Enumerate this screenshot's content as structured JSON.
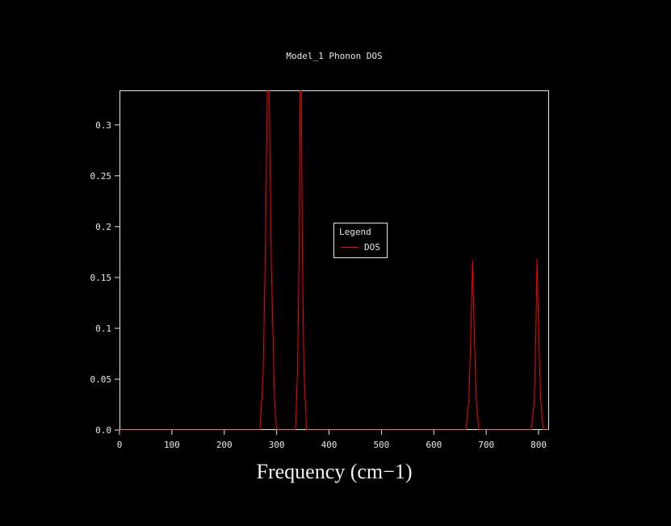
{
  "chart_data": {
    "type": "line",
    "title": "Model_1 Phonon DOS",
    "xlabel": "Frequency (cm−1)",
    "ylabel": "",
    "xlim": [
      0,
      820
    ],
    "ylim": [
      0,
      0.334
    ],
    "grid": false,
    "background_color": "#000000",
    "frame_color": "#e8e8e8",
    "x_ticks": [
      {
        "v": 0,
        "label": "0"
      },
      {
        "v": 100,
        "label": "100"
      },
      {
        "v": 200,
        "label": "200"
      },
      {
        "v": 300,
        "label": "300"
      },
      {
        "v": 400,
        "label": "400"
      },
      {
        "v": 500,
        "label": "500"
      },
      {
        "v": 600,
        "label": "600"
      },
      {
        "v": 700,
        "label": "700"
      },
      {
        "v": 800,
        "label": "800"
      }
    ],
    "y_ticks": [
      {
        "v": 0.0,
        "label": "0.0"
      },
      {
        "v": 0.05,
        "label": "0.05"
      },
      {
        "v": 0.1,
        "label": "0.1"
      },
      {
        "v": 0.15,
        "label": "0.15"
      },
      {
        "v": 0.2,
        "label": "0.2"
      },
      {
        "v": 0.25,
        "label": "0.25"
      },
      {
        "v": 0.3,
        "label": "0.3"
      }
    ],
    "legend": {
      "title": "Legend",
      "position": "inside-center",
      "entries": [
        {
          "label": "DOS",
          "color": "#ff0000"
        }
      ]
    },
    "series": [
      {
        "name": "DOS",
        "color": "#ff0000",
        "points": [
          [
            0,
            0
          ],
          [
            268,
            0
          ],
          [
            274,
            0.05
          ],
          [
            278,
            0.16
          ],
          [
            281,
            0.28
          ],
          [
            284,
            0.42
          ],
          [
            287,
            0.28
          ],
          [
            290,
            0.16
          ],
          [
            296,
            0.03
          ],
          [
            300,
            0
          ],
          [
            336,
            0
          ],
          [
            340,
            0.06
          ],
          [
            343,
            0.18
          ],
          [
            346,
            0.42
          ],
          [
            349,
            0.18
          ],
          [
            352,
            0.06
          ],
          [
            357,
            0
          ],
          [
            661,
            0
          ],
          [
            667,
            0.03
          ],
          [
            671,
            0.1
          ],
          [
            674,
            0.167
          ],
          [
            677,
            0.1
          ],
          [
            681,
            0.03
          ],
          [
            686,
            0
          ],
          [
            786,
            0
          ],
          [
            792,
            0.03
          ],
          [
            795,
            0.1
          ],
          [
            797,
            0.168
          ],
          [
            800,
            0.1
          ],
          [
            804,
            0.03
          ],
          [
            809,
            0
          ],
          [
            820,
            0
          ]
        ]
      }
    ]
  }
}
